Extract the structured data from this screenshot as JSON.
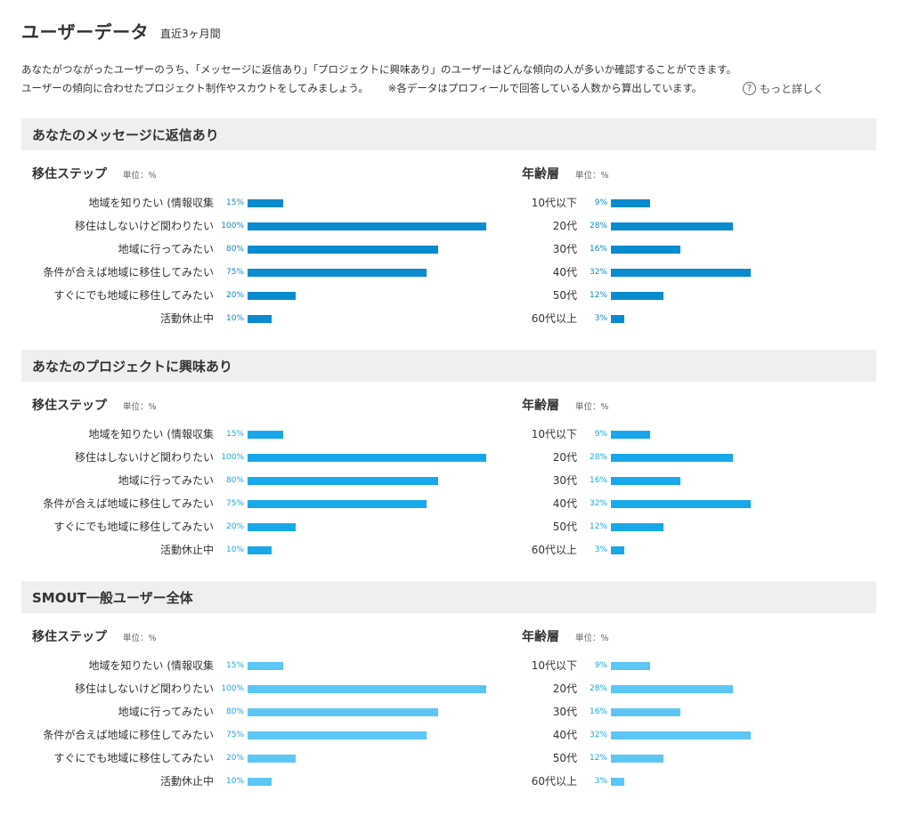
{
  "header": {
    "title": "ユーザーデータ",
    "period": "直近3ヶ月間"
  },
  "intro": {
    "line1": "あなたがつながったユーザーのうち、「メッセージに返信あり」「プロジェクトに興味あり」のユーザーはどんな傾向の人が多いか確認することができます。",
    "line2": "ユーザーの傾向に合わせたプロジェクト制作やスカウトをしてみましょう。",
    "note": "※各データはプロフィールで回答している人数から算出しています。",
    "more_link": "もっと詳しく",
    "help_icon": "?"
  },
  "colors": {
    "section_bg": "#efefef",
    "text": "#333333"
  },
  "chart_data": [
    {
      "type": "bar",
      "section": "あなたのメッセージに返信あり",
      "title": "移住ステップ",
      "unit": "単位：%",
      "color": "#0a8bd0",
      "label_color": "#0a8bd0",
      "categories": [
        "地域を知りたい (情報収集",
        "移住はしないけど関わりたい",
        "地域に行ってみたい",
        "条件が合えば地域に移住してみたい",
        "すぐにでも地域に移住してみたい",
        "活動休止中"
      ],
      "values": [
        15,
        100,
        80,
        75,
        20,
        10
      ],
      "xlim": [
        0,
        100
      ]
    },
    {
      "type": "bar",
      "section": "あなたのメッセージに返信あり",
      "title": "年齢層",
      "unit": "単位：%",
      "color": "#0a8bd0",
      "label_color": "#0a8bd0",
      "categories": [
        "10代以下",
        "20代",
        "30代",
        "40代",
        "50代",
        "60代以上"
      ],
      "values": [
        9,
        28,
        16,
        32,
        12,
        3
      ],
      "xlim": [
        0,
        50
      ]
    },
    {
      "type": "bar",
      "section": "あなたのプロジェクトに興味あり",
      "title": "移住ステップ",
      "unit": "単位：%",
      "color": "#18a8ea",
      "label_color": "#18a8ea",
      "categories": [
        "地域を知りたい (情報収集",
        "移住はしないけど関わりたい",
        "地域に行ってみたい",
        "条件が合えば地域に移住してみたい",
        "すぐにでも地域に移住してみたい",
        "活動休止中"
      ],
      "values": [
        15,
        100,
        80,
        75,
        20,
        10
      ],
      "xlim": [
        0,
        100
      ]
    },
    {
      "type": "bar",
      "section": "あなたのプロジェクトに興味あり",
      "title": "年齢層",
      "unit": "単位：%",
      "color": "#18a8ea",
      "label_color": "#18a8ea",
      "categories": [
        "10代以下",
        "20代",
        "30代",
        "40代",
        "50代",
        "60代以上"
      ],
      "values": [
        9,
        28,
        16,
        32,
        12,
        3
      ],
      "xlim": [
        0,
        50
      ]
    },
    {
      "type": "bar",
      "section": "SMOUT一般ユーザー全体",
      "title": "移住ステップ",
      "unit": "単位：%",
      "color": "#5cc6f5",
      "label_color": "#18a8ea",
      "categories": [
        "地域を知りたい (情報収集",
        "移住はしないけど関わりたい",
        "地域に行ってみたい",
        "条件が合えば地域に移住してみたい",
        "すぐにでも地域に移住してみたい",
        "活動休止中"
      ],
      "values": [
        15,
        100,
        80,
        75,
        20,
        10
      ],
      "xlim": [
        0,
        100
      ]
    },
    {
      "type": "bar",
      "section": "SMOUT一般ユーザー全体",
      "title": "年齢層",
      "unit": "単位：%",
      "color": "#5cc6f5",
      "label_color": "#18a8ea",
      "categories": [
        "10代以下",
        "20代",
        "30代",
        "40代",
        "50代",
        "60代以上"
      ],
      "values": [
        9,
        28,
        16,
        32,
        12,
        3
      ],
      "xlim": [
        0,
        50
      ]
    }
  ]
}
